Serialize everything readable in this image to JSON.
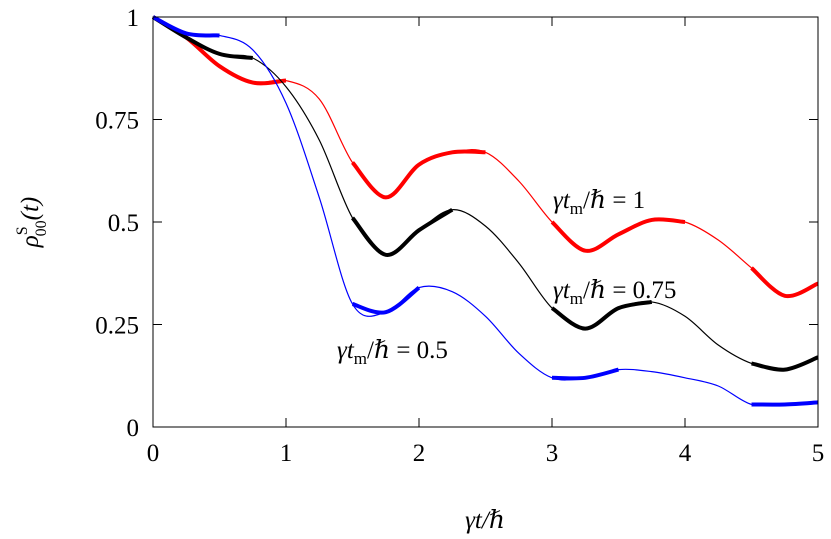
{
  "chart_data": {
    "type": "line",
    "x_label": "γt/ℏ",
    "y_label": [
      "ρ",
      "S",
      "00",
      "(t)"
    ],
    "x": [
      0,
      0.25,
      0.5,
      0.75,
      1,
      1.25,
      1.5,
      1.75,
      2,
      2.25,
      2.5,
      2.75,
      3,
      3.25,
      3.5,
      3.75,
      4,
      4.25,
      4.5,
      4.75,
      5
    ],
    "xlim": [
      0,
      5
    ],
    "xticks": [
      0,
      1,
      2,
      3,
      4,
      5
    ],
    "ylim": [
      0,
      1
    ],
    "yticks": [
      0,
      0.25,
      0.5,
      0.75,
      1
    ],
    "series": [
      {
        "color": "#ff0000",
        "line_width": 1.2,
        "values": [
          1,
          0.95,
          0.88,
          0.84,
          0.845,
          0.8,
          0.645,
          0.56,
          0.64,
          0.67,
          0.67,
          0.6,
          0.5,
          0.43,
          0.47,
          0.505,
          0.5,
          0.456,
          0.388,
          0.32,
          0.35
        ]
      },
      {
        "color": "#ff0000",
        "line_width": 4,
        "values": [
          1,
          0.95,
          0.88,
          0.84,
          0.845,
          null,
          0.645,
          0.56,
          0.64,
          0.67,
          0.67,
          null,
          0.5,
          0.43,
          0.47,
          0.505,
          0.5,
          null,
          0.388,
          0.32,
          0.35
        ]
      },
      {
        "color": "#000000",
        "line_width": 1.2,
        "values": [
          1,
          0.95,
          0.91,
          0.9,
          0.83,
          0.7,
          0.51,
          0.42,
          0.48,
          0.53,
          0.49,
          0.4,
          0.29,
          0.24,
          0.29,
          0.305,
          0.27,
          0.2,
          0.155,
          0.14,
          0.17
        ]
      },
      {
        "color": "#000000",
        "line_width": 4,
        "values": [
          1,
          0.95,
          0.91,
          0.9,
          null,
          null,
          0.51,
          0.42,
          0.48,
          0.53,
          null,
          null,
          0.29,
          0.24,
          0.29,
          0.305,
          null,
          null,
          0.155,
          0.14,
          0.17
        ]
      },
      {
        "color": "#0000ff",
        "line_width": 1.2,
        "values": [
          1,
          0.96,
          0.955,
          0.92,
          0.79,
          0.56,
          0.3,
          0.28,
          0.34,
          0.33,
          0.27,
          0.18,
          0.12,
          0.12,
          0.14,
          0.135,
          0.12,
          0.1,
          0.055,
          0.055,
          0.06
        ]
      },
      {
        "color": "#0000ff",
        "line_width": 4,
        "values": [
          1,
          0.96,
          0.955,
          null,
          null,
          null,
          0.3,
          0.28,
          0.34,
          null,
          null,
          null,
          0.12,
          0.12,
          0.14,
          null,
          null,
          null,
          0.055,
          0.055,
          0.06
        ]
      }
    ],
    "annotations": [
      [
        "γt",
        "m",
        "/ℏ = 1"
      ],
      [
        "γt",
        "m",
        "/ℏ = 0.75"
      ],
      [
        "γt",
        "m",
        "/ℏ = 0.5"
      ]
    ]
  }
}
